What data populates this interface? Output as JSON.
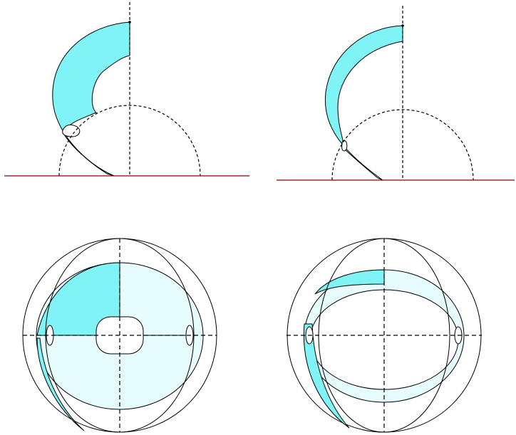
{
  "figure": {
    "panels": [
      {
        "id": "top-left",
        "view": "side",
        "surface": "wide-band"
      },
      {
        "id": "top-right",
        "view": "side",
        "surface": "narrow-band"
      },
      {
        "id": "bottom-left",
        "view": "top",
        "surface": "wide-band"
      },
      {
        "id": "bottom-right",
        "view": "top",
        "surface": "narrow-band"
      }
    ]
  },
  "colors": {
    "fill_strong": "#7ff3f6",
    "fill_light": "#e6fcfd",
    "stroke": "#000000",
    "baseline": "#8b0000",
    "background": "#ffffff"
  }
}
